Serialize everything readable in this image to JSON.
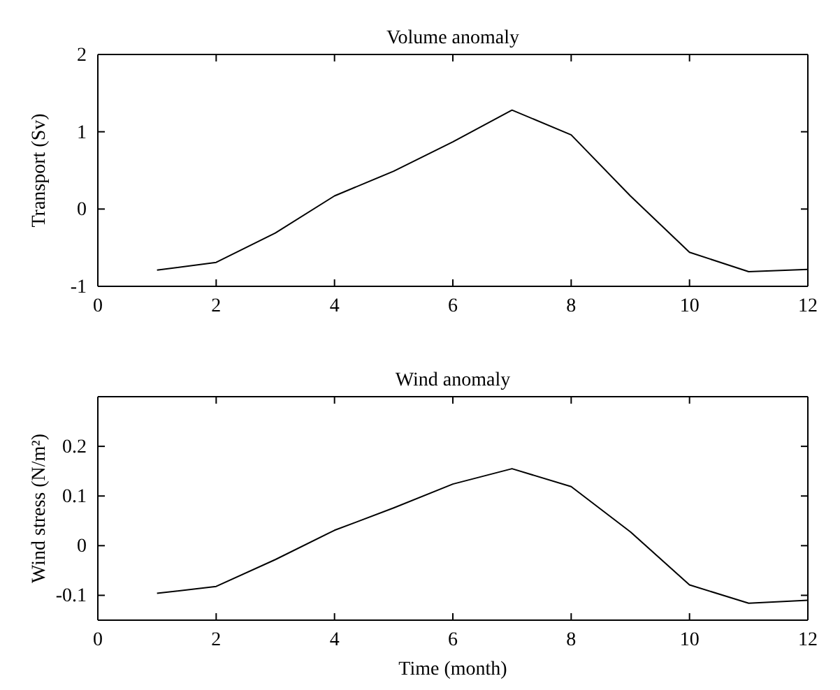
{
  "chart_data": [
    {
      "type": "line",
      "title": "Volume anomaly",
      "ylabel": "Transport (Sv)",
      "x": [
        1,
        2,
        3,
        4,
        5,
        6,
        7,
        8,
        9,
        10,
        11,
        12
      ],
      "series": [
        {
          "color": "#000000",
          "values": [
            -0.79,
            -0.69,
            -0.31,
            0.17,
            0.49,
            0.87,
            1.28,
            0.96,
            0.17,
            -0.56,
            -0.81,
            -0.78
          ]
        }
      ],
      "xlim": [
        0,
        12
      ],
      "xticks": [
        0,
        2,
        4,
        6,
        8,
        10,
        12
      ],
      "ylim": [
        -1,
        2
      ],
      "yticks": [
        -1,
        0,
        1,
        2
      ]
    },
    {
      "type": "line",
      "title": "Wind anomaly",
      "xlabel": "Time (month)",
      "ylabel": "Wind stress (N/m²)",
      "x": [
        1,
        2,
        3,
        4,
        5,
        6,
        7,
        8,
        9,
        10,
        11,
        12
      ],
      "series": [
        {
          "color": "#000000",
          "values": [
            -0.096,
            -0.082,
            -0.028,
            0.031,
            0.076,
            0.124,
            0.155,
            0.119,
            0.028,
            -0.079,
            -0.116,
            -0.11
          ]
        }
      ],
      "xlim": [
        0,
        12
      ],
      "xticks": [
        0,
        2,
        4,
        6,
        8,
        10,
        12
      ],
      "ylim": [
        -0.15,
        0.3
      ],
      "yticks": [
        -0.1,
        0,
        0.1,
        0.2
      ]
    }
  ]
}
